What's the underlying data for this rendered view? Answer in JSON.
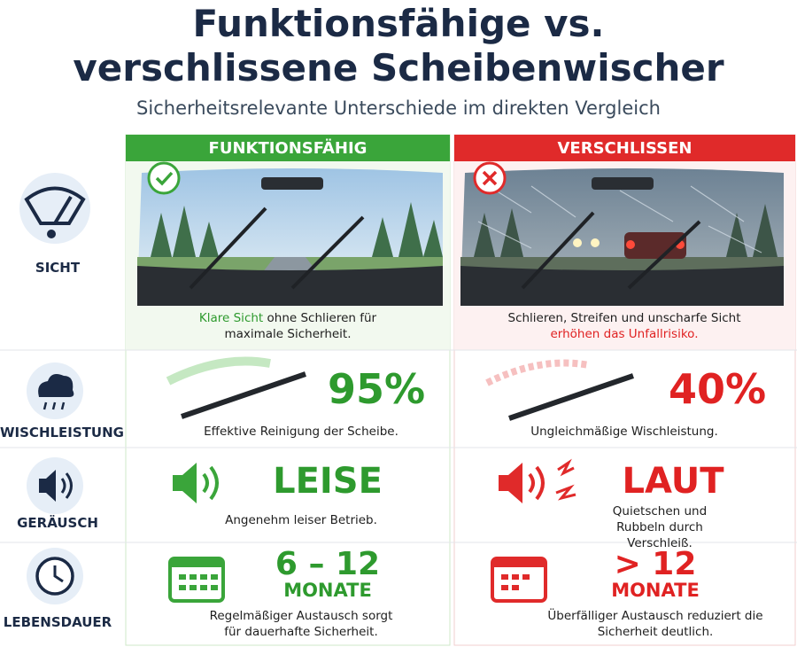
{
  "header": {
    "title_lines": [
      "Funktionsfähige vs.",
      "verschlissene Scheibenwischer"
    ],
    "subtitle": "Sicherheitsrelevante Unterschiede im direkten Vergleich"
  },
  "columns": {
    "good": "FUNKTIONSFÄHIG",
    "bad": "VERSCHLISSEN"
  },
  "rows": [
    {
      "label": "SICHT",
      "good": {
        "highlight": "Klare Sicht",
        "text": " ohne Schlieren für maximale Sicherheit."
      },
      "bad": {
        "text": "Schlieren, Streifen und unscharfe Sicht ",
        "highlight": "erhöhen das Unfallrisiko."
      }
    },
    {
      "label": "WISCHLEISTUNG",
      "good": {
        "value": "95%",
        "text": "Effektive Reinigung der Scheibe."
      },
      "bad": {
        "value": "40%",
        "text": "Ungleichmäßige Wischleistung."
      }
    },
    {
      "label": "GERÄUSCH",
      "good": {
        "value": "LEISE",
        "text": "Angenehm leiser Betrieb."
      },
      "bad": {
        "value": "LAUT",
        "text": "Quietschen und Rubbeln durch Verschleiß."
      }
    },
    {
      "label": "LEBENSDAUER",
      "good": {
        "value": "6 – 12",
        "unit": "MONATE",
        "text": "Regelmäßiger Austausch sorgt für dauerhafte Sicherheit."
      },
      "bad": {
        "value": "> 12",
        "unit": "MONATE",
        "text": "Überfälliger Austausch reduziert die Sicherheit deutlich."
      }
    }
  ]
}
